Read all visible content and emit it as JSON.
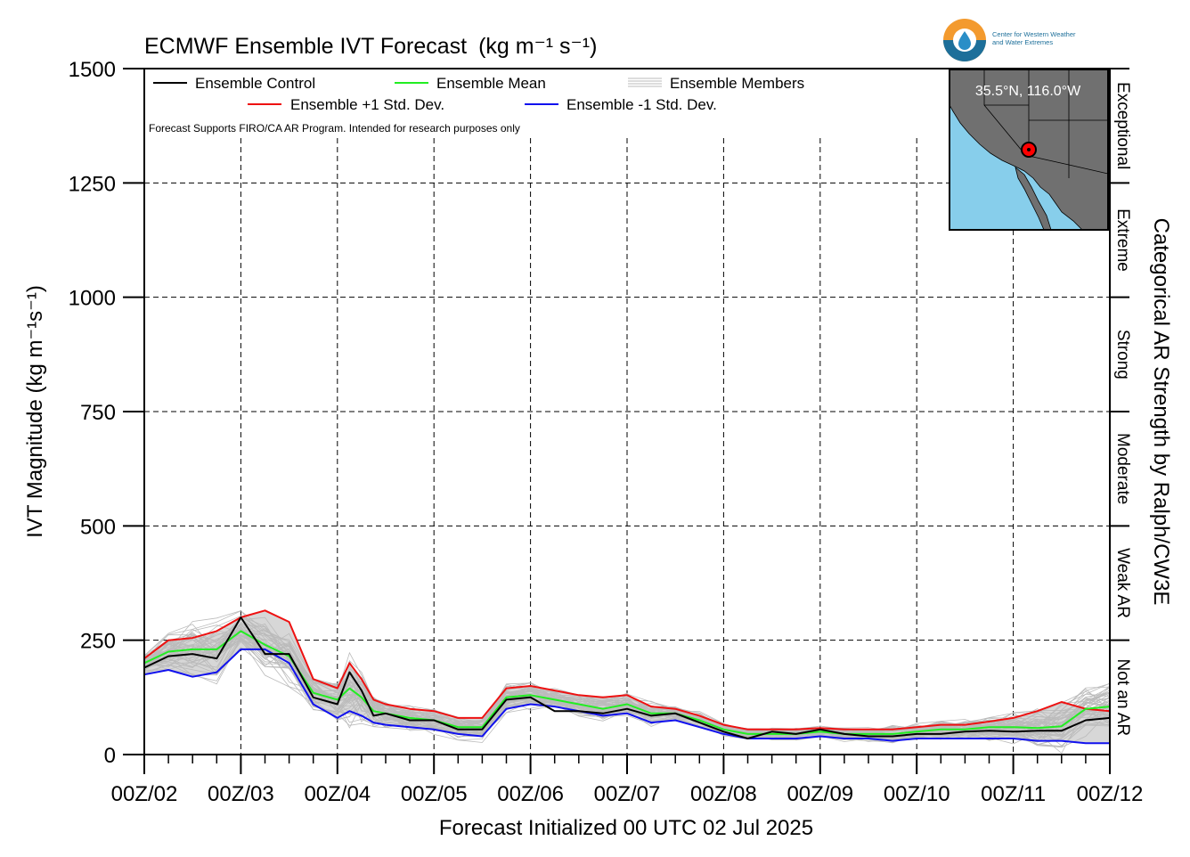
{
  "chart_data": {
    "type": "line",
    "title": "ECMWF Ensemble IVT Forecast",
    "title_units": "(kg m⁻¹ s⁻¹)",
    "xlabel": "Forecast Initialized 00 UTC 02 Jul 2025",
    "ylabel": "IVT Magnitude (kg m⁻¹s⁻¹)",
    "right_label": "Categorical AR Strength by Ralph/CW3E",
    "ylim": [
      0,
      1500
    ],
    "y_ticks": [
      "0",
      "250",
      "500",
      "750",
      "1000",
      "1250",
      "1500"
    ],
    "x_ticks": [
      "00Z/02",
      "00Z/03",
      "00Z/04",
      "00Z/05",
      "00Z/06",
      "00Z/07",
      "00Z/08",
      "00Z/09",
      "00Z/10",
      "00Z/11",
      "00Z/12"
    ],
    "x_range_hours": [
      0,
      240
    ],
    "grid": true,
    "categories": [
      {
        "label": "Not an AR",
        "range": [
          0,
          250
        ]
      },
      {
        "label": "Weak AR",
        "range": [
          250,
          500
        ]
      },
      {
        "label": "Moderate",
        "range": [
          500,
          750
        ]
      },
      {
        "label": "Strong",
        "range": [
          750,
          1000
        ]
      },
      {
        "label": "Extreme",
        "range": [
          1000,
          1250
        ]
      },
      {
        "label": "Exceptional",
        "range": [
          1250,
          1500
        ]
      }
    ],
    "legend": {
      "control": "Ensemble Control",
      "mean": "Ensemble Mean",
      "members": "Ensemble Members",
      "plus": "Ensemble +1 Std. Dev.",
      "minus": "Ensemble -1 Std. Dev."
    },
    "note": "Forecast Supports FIRO/CA AR Program. Intended for research purposes only",
    "colors": {
      "control": "#000000",
      "mean": "#22ee22",
      "plus": "#ee1111",
      "minus": "#1111ee",
      "members": "#bbbbbb",
      "band": "#d7d7d7",
      "ocean": "#87ceeb",
      "land": "#707070"
    },
    "series": [
      {
        "name": "Ensemble Control",
        "key": "control",
        "x": [
          0,
          6,
          12,
          18,
          24,
          30,
          36,
          42,
          48,
          51,
          54,
          57,
          60,
          66,
          72,
          78,
          84,
          90,
          96,
          102,
          108,
          114,
          120,
          126,
          132,
          138,
          144,
          150,
          156,
          162,
          168,
          174,
          180,
          186,
          192,
          198,
          204,
          210,
          216,
          222,
          228,
          234,
          240
        ],
        "values": [
          190,
          215,
          220,
          210,
          300,
          220,
          220,
          125,
          110,
          180,
          140,
          85,
          90,
          75,
          75,
          55,
          55,
          120,
          125,
          95,
          95,
          90,
          100,
          85,
          90,
          70,
          50,
          35,
          50,
          45,
          55,
          45,
          40,
          40,
          45,
          45,
          50,
          52,
          50,
          52,
          52,
          75,
          80
        ]
      },
      {
        "name": "Ensemble Mean",
        "key": "mean",
        "x": [
          0,
          6,
          12,
          18,
          24,
          30,
          36,
          42,
          48,
          51,
          54,
          57,
          60,
          66,
          72,
          78,
          84,
          90,
          96,
          102,
          108,
          114,
          120,
          126,
          132,
          138,
          144,
          150,
          156,
          162,
          168,
          174,
          180,
          186,
          192,
          198,
          204,
          210,
          216,
          222,
          228,
          234,
          240
        ],
        "values": [
          200,
          225,
          230,
          230,
          270,
          240,
          215,
          135,
          120,
          145,
          125,
          95,
          90,
          80,
          75,
          60,
          60,
          125,
          130,
          120,
          110,
          100,
          110,
          90,
          90,
          75,
          55,
          45,
          45,
          45,
          50,
          45,
          45,
          45,
          50,
          55,
          55,
          60,
          60,
          58,
          62,
          100,
          105
        ]
      },
      {
        "name": "Ensemble +1 Std. Dev.",
        "key": "plus",
        "x": [
          0,
          6,
          12,
          18,
          24,
          30,
          36,
          42,
          48,
          51,
          54,
          57,
          60,
          66,
          72,
          78,
          84,
          90,
          96,
          102,
          108,
          114,
          120,
          126,
          132,
          138,
          144,
          150,
          156,
          162,
          168,
          174,
          180,
          186,
          192,
          198,
          204,
          210,
          216,
          222,
          228,
          234,
          240
        ],
        "values": [
          210,
          250,
          255,
          270,
          300,
          315,
          290,
          165,
          145,
          200,
          165,
          120,
          110,
          100,
          95,
          80,
          80,
          145,
          150,
          140,
          130,
          125,
          130,
          105,
          100,
          85,
          65,
          55,
          55,
          55,
          58,
          55,
          55,
          55,
          60,
          65,
          65,
          72,
          80,
          95,
          115,
          100,
          95
        ]
      },
      {
        "name": "Ensemble -1 Std. Dev.",
        "key": "minus",
        "x": [
          0,
          6,
          12,
          18,
          24,
          30,
          36,
          42,
          48,
          51,
          54,
          57,
          60,
          66,
          72,
          78,
          84,
          90,
          96,
          102,
          108,
          114,
          120,
          126,
          132,
          138,
          144,
          150,
          156,
          162,
          168,
          174,
          180,
          186,
          192,
          198,
          204,
          210,
          216,
          222,
          228,
          234,
          240
        ],
        "values": [
          175,
          185,
          170,
          180,
          230,
          230,
          200,
          110,
          80,
          95,
          85,
          70,
          65,
          60,
          55,
          45,
          40,
          100,
          110,
          105,
          95,
          85,
          90,
          70,
          75,
          60,
          45,
          35,
          35,
          35,
          40,
          35,
          35,
          30,
          35,
          35,
          35,
          35,
          35,
          30,
          30,
          25,
          25
        ]
      }
    ]
  },
  "inset_map": {
    "location_label": "35.5°N, 116.0°W"
  },
  "logo": {
    "text": "Center for Western Weather and Water Extremes"
  }
}
